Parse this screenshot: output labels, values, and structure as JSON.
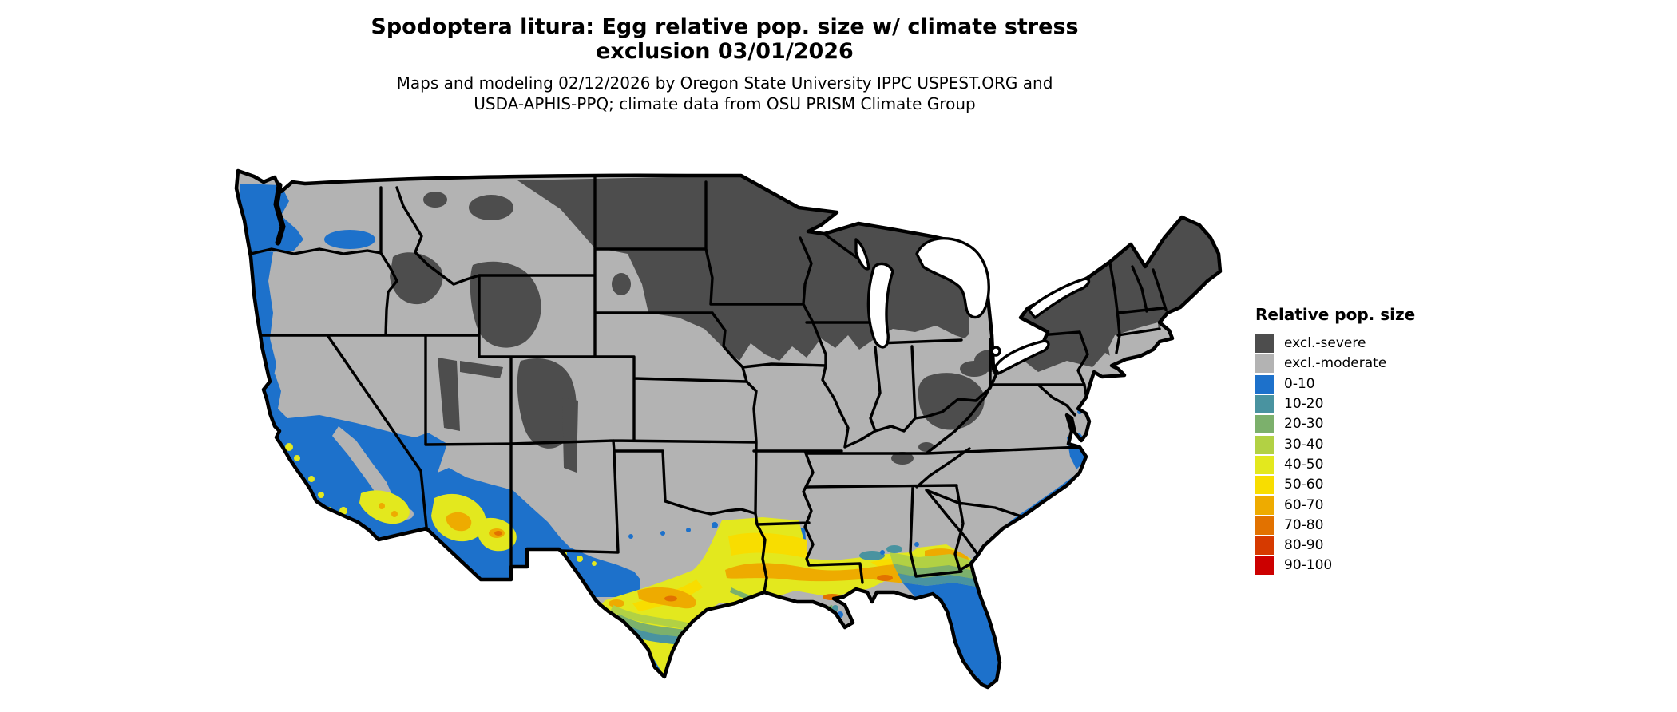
{
  "title": {
    "line1": "Spodoptera litura: Egg relative pop. size w/ climate stress",
    "line2": "exclusion 03/01/2026"
  },
  "subtitle": {
    "line1": "Maps and modeling 02/12/2026 by Oregon State University IPPC USPEST.ORG and",
    "line2": "USDA-APHIS-PPQ; climate data from OSU PRISM Climate Group"
  },
  "legend": {
    "title": "Relative pop. size",
    "items": [
      {
        "key": "excl_severe",
        "label": "excl.-severe",
        "color": "#4d4d4d"
      },
      {
        "key": "excl_moderate",
        "label": "excl.-moderate",
        "color": "#b3b3b3"
      },
      {
        "key": "v0_10",
        "label": "0-10",
        "color": "#1d71cb"
      },
      {
        "key": "v10_20",
        "label": "10-20",
        "color": "#4993a0"
      },
      {
        "key": "v20_30",
        "label": "20-30",
        "color": "#7cb06c"
      },
      {
        "key": "v30_40",
        "label": "30-40",
        "color": "#b2d144"
      },
      {
        "key": "v40_50",
        "label": "40-50",
        "color": "#e3e81e"
      },
      {
        "key": "v50_60",
        "label": "50-60",
        "color": "#f8dd00"
      },
      {
        "key": "v60_70",
        "label": "60-70",
        "color": "#eeab00"
      },
      {
        "key": "v70_80",
        "label": "70-80",
        "color": "#e27200"
      },
      {
        "key": "v80_90",
        "label": "80-90",
        "color": "#d63a00"
      },
      {
        "key": "v90_100",
        "label": "90-100",
        "color": "#cc0000"
      }
    ]
  },
  "map": {
    "region": "Continental United States",
    "border_color": "#000000",
    "water_color": "#ffffff",
    "notes": "Choropleth raster: severe climate-stress exclusion across northern tier (Upper Midwest, New England, Rockies); moderate exclusion across central US; 0-10 along Pacific coast, south Texas, Florida peninsula and Atlantic coastal fringe; 40-80 band along Gulf coast, southern California and southern Arizona."
  }
}
